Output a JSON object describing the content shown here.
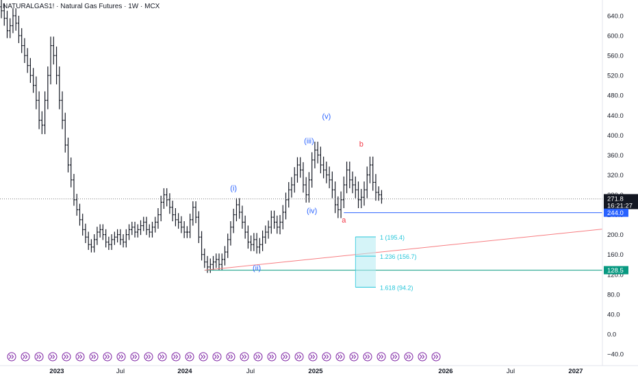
{
  "header": {
    "symbol": "NATURALGAS1!",
    "separator1": " · ",
    "name": "Natural Gas Futures",
    "separator2": " · ",
    "interval": "1W",
    "separator3": " · ",
    "exchange": "MCX"
  },
  "colors": {
    "bar": "#131722",
    "wave_label": "#2962ff",
    "corrective_label": "#f23645",
    "trendline": "#f77c80",
    "fib_line": "#26c6da",
    "fib_box": "#b2ebf2",
    "support_244": "#2962ff",
    "support_128": "#089981",
    "axis_text": "#131722",
    "event_icon": "#7b1fa2"
  },
  "chart_data": {
    "type": "ohlc",
    "price_axis_ticks": [
      "640.0",
      "600.0",
      "560.0",
      "520.0",
      "480.0",
      "440.0",
      "400.0",
      "360.0",
      "320.0",
      "280.0",
      "240.0",
      "200.0",
      "160.0",
      "120.0",
      "80.0",
      "40.0",
      "0.0",
      "−40.0"
    ],
    "time_axis_ticks": [
      {
        "label": "2023",
        "bold": true
      },
      {
        "label": "Jul",
        "bold": false
      },
      {
        "label": "2024",
        "bold": true
      },
      {
        "label": "Jul",
        "bold": false
      },
      {
        "label": "2025",
        "bold": true
      },
      {
        "label": "2026",
        "bold": true
      },
      {
        "label": "Jul",
        "bold": false
      },
      {
        "label": "2027",
        "bold": true
      }
    ],
    "ylim": [
      -50,
      670
    ],
    "last_price": {
      "value": 271.8,
      "label": "271.8",
      "countdown": "16:21:27"
    },
    "horizontal_levels": [
      {
        "value": 244.0,
        "label": "244.0",
        "color": "#2962ff"
      },
      {
        "value": 128.5,
        "label": "128.5",
        "color": "#089981"
      }
    ],
    "wave_labels": [
      {
        "text": "(i)",
        "price": 288,
        "bar": 80,
        "color": "#2962ff"
      },
      {
        "text": "(ii)",
        "price": 128,
        "bar": 88,
        "color": "#2962ff"
      },
      {
        "text": "(iii)",
        "price": 383,
        "bar": 106,
        "color": "#2962ff"
      },
      {
        "text": "(iv)",
        "price": 243,
        "bar": 107,
        "color": "#2962ff"
      },
      {
        "text": "(v)",
        "price": 433,
        "bar": 112,
        "color": "#2962ff"
      },
      {
        "text": "b",
        "price": 377,
        "bar": 124,
        "color": "#f23645"
      },
      {
        "text": "a",
        "price": 224,
        "bar": 118,
        "color": "#f23645"
      }
    ],
    "fib_levels": [
      {
        "ratio": "1",
        "value": 195.4,
        "label": "1 (195.4)"
      },
      {
        "ratio": "1.236",
        "value": 156.7,
        "label": "1.236 (156.7)"
      },
      {
        "ratio": "1.618",
        "value": 94.2,
        "label": "1.618 (94.2)"
      }
    ],
    "weekly_closes": [
      650,
      635,
      610,
      620,
      640,
      625,
      600,
      580,
      560,
      540,
      520,
      500,
      470,
      430,
      420,
      470,
      520,
      580,
      560,
      520,
      470,
      430,
      380,
      340,
      310,
      270,
      250,
      230,
      210,
      195,
      180,
      175,
      190,
      205,
      210,
      200,
      185,
      180,
      190,
      195,
      200,
      190,
      185,
      200,
      210,
      215,
      205,
      210,
      218,
      225,
      210,
      205,
      215,
      225,
      240,
      265,
      280,
      270,
      255,
      240,
      230,
      225,
      215,
      205,
      205,
      230,
      255,
      235,
      195,
      160,
      145,
      135,
      140,
      145,
      150,
      140,
      150,
      165,
      190,
      215,
      240,
      260,
      245,
      225,
      205,
      185,
      180,
      190,
      175,
      180,
      195,
      205,
      215,
      235,
      225,
      215,
      225,
      245,
      270,
      290,
      300,
      320,
      340,
      330,
      300,
      280,
      310,
      350,
      370,
      360,
      340,
      330,
      320,
      310,
      290,
      260,
      250,
      270,
      300,
      330,
      310,
      300,
      290,
      270,
      275,
      290,
      320,
      340,
      305,
      285,
      280,
      271.8
    ],
    "weekly_ranges": [
      25,
      25,
      25,
      25,
      25,
      25,
      25,
      25,
      25,
      25,
      25,
      25,
      30,
      30,
      30,
      30,
      30,
      30,
      30,
      30,
      30,
      30,
      25,
      25,
      25,
      20,
      20,
      20,
      20,
      20,
      18,
      18,
      18,
      18,
      18,
      18,
      18,
      18,
      18,
      18,
      18,
      18,
      18,
      18,
      18,
      18,
      18,
      18,
      18,
      18,
      18,
      18,
      18,
      18,
      22,
      22,
      22,
      22,
      22,
      22,
      22,
      22,
      20,
      20,
      20,
      20,
      20,
      20,
      20,
      20,
      20,
      20,
      20,
      20,
      20,
      20,
      20,
      20,
      20,
      20,
      20,
      22,
      22,
      22,
      22,
      22,
      22,
      22,
      22,
      22,
      22,
      22,
      22,
      22,
      22,
      22,
      24,
      24,
      24,
      26,
      26,
      26,
      26,
      26,
      26,
      26,
      26,
      26,
      28,
      28,
      28,
      28,
      28,
      28,
      28,
      28,
      28,
      28,
      28,
      28,
      28,
      28,
      28,
      28,
      28,
      28,
      28,
      28,
      28,
      28,
      20,
      16
    ]
  }
}
